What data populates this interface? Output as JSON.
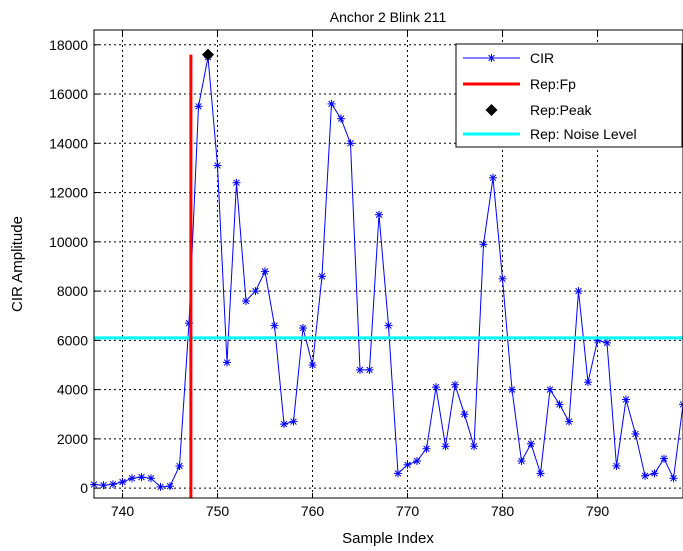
{
  "chart_data": {
    "type": "line",
    "title": "Anchor 2  Blink 211",
    "xlabel": "Sample Index",
    "ylabel": "CIR Amplitude",
    "xlim": [
      737,
      799
    ],
    "ylim": [
      -400,
      18600
    ],
    "xticks": [
      740,
      750,
      760,
      770,
      780,
      790
    ],
    "yticks": [
      0,
      2000,
      4000,
      6000,
      8000,
      10000,
      12000,
      14000,
      16000,
      18000
    ],
    "grid": true,
    "grid_style": "dotted",
    "legend_position": "top-right",
    "series": [
      {
        "name": "CIR",
        "kind": "line-marker",
        "color": "#0000ff",
        "marker": "asterisk",
        "x": [
          737,
          738,
          739,
          740,
          741,
          742,
          743,
          744,
          745,
          746,
          747,
          748,
          749,
          750,
          751,
          752,
          753,
          754,
          755,
          756,
          757,
          758,
          759,
          760,
          761,
          762,
          763,
          764,
          765,
          766,
          767,
          768,
          769,
          770,
          771,
          772,
          773,
          774,
          775,
          776,
          777,
          778,
          779,
          780,
          781,
          782,
          783,
          784,
          785,
          786,
          787,
          788,
          789,
          790,
          791,
          792,
          793,
          794,
          795,
          796,
          797,
          798,
          799
        ],
        "y": [
          150,
          120,
          160,
          250,
          400,
          450,
          400,
          50,
          80,
          900,
          6700,
          15500,
          17500,
          13100,
          5100,
          12400,
          7600,
          8000,
          8800,
          6600,
          2600,
          2700,
          6500,
          5000,
          8600,
          15600,
          15000,
          14000,
          4800,
          4800,
          11100,
          6600,
          600,
          950,
          1100,
          1600,
          4100,
          1700,
          4200,
          3000,
          1700,
          9900,
          12600,
          8500,
          4000,
          1100,
          1800,
          600,
          4000,
          3400,
          2700,
          8000,
          4300,
          6000,
          5900,
          900,
          3600,
          2200,
          500,
          600,
          1200,
          400,
          3400
        ]
      },
      {
        "name": "Rep:Fp",
        "kind": "vline",
        "color": "#ff0000",
        "x": 747.2,
        "y_range": [
          -400,
          17600
        ]
      },
      {
        "name": "Rep:Peak",
        "kind": "point",
        "color": "#000000",
        "marker": "diamond",
        "x": 749,
        "y": 17600
      },
      {
        "name": "Rep: Noise Level",
        "kind": "hline",
        "color": "#00ffff",
        "y": 6100
      }
    ]
  }
}
